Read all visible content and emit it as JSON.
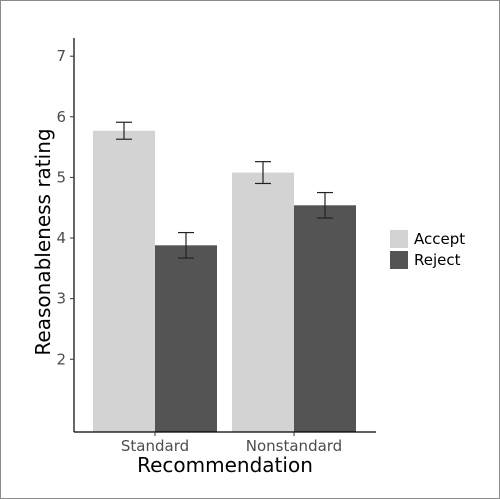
{
  "chart_data": {
    "type": "bar",
    "title": "",
    "xlabel": "Recommendation",
    "ylabel": "Reasonableness rating",
    "categories": [
      "Standard",
      "Nonstandard"
    ],
    "series": [
      {
        "name": "Accept",
        "color": "#d3d3d3",
        "values": [
          5.77,
          5.08
        ],
        "error": [
          0.14,
          0.18
        ]
      },
      {
        "name": "Reject",
        "color": "#545454",
        "values": [
          3.88,
          4.54
        ],
        "error": [
          0.21,
          0.21
        ]
      }
    ],
    "ylim": [
      0.8,
      7.3
    ],
    "yticks": [
      2,
      3,
      4,
      5,
      6,
      7
    ],
    "grid": false,
    "legend_position": "right"
  }
}
